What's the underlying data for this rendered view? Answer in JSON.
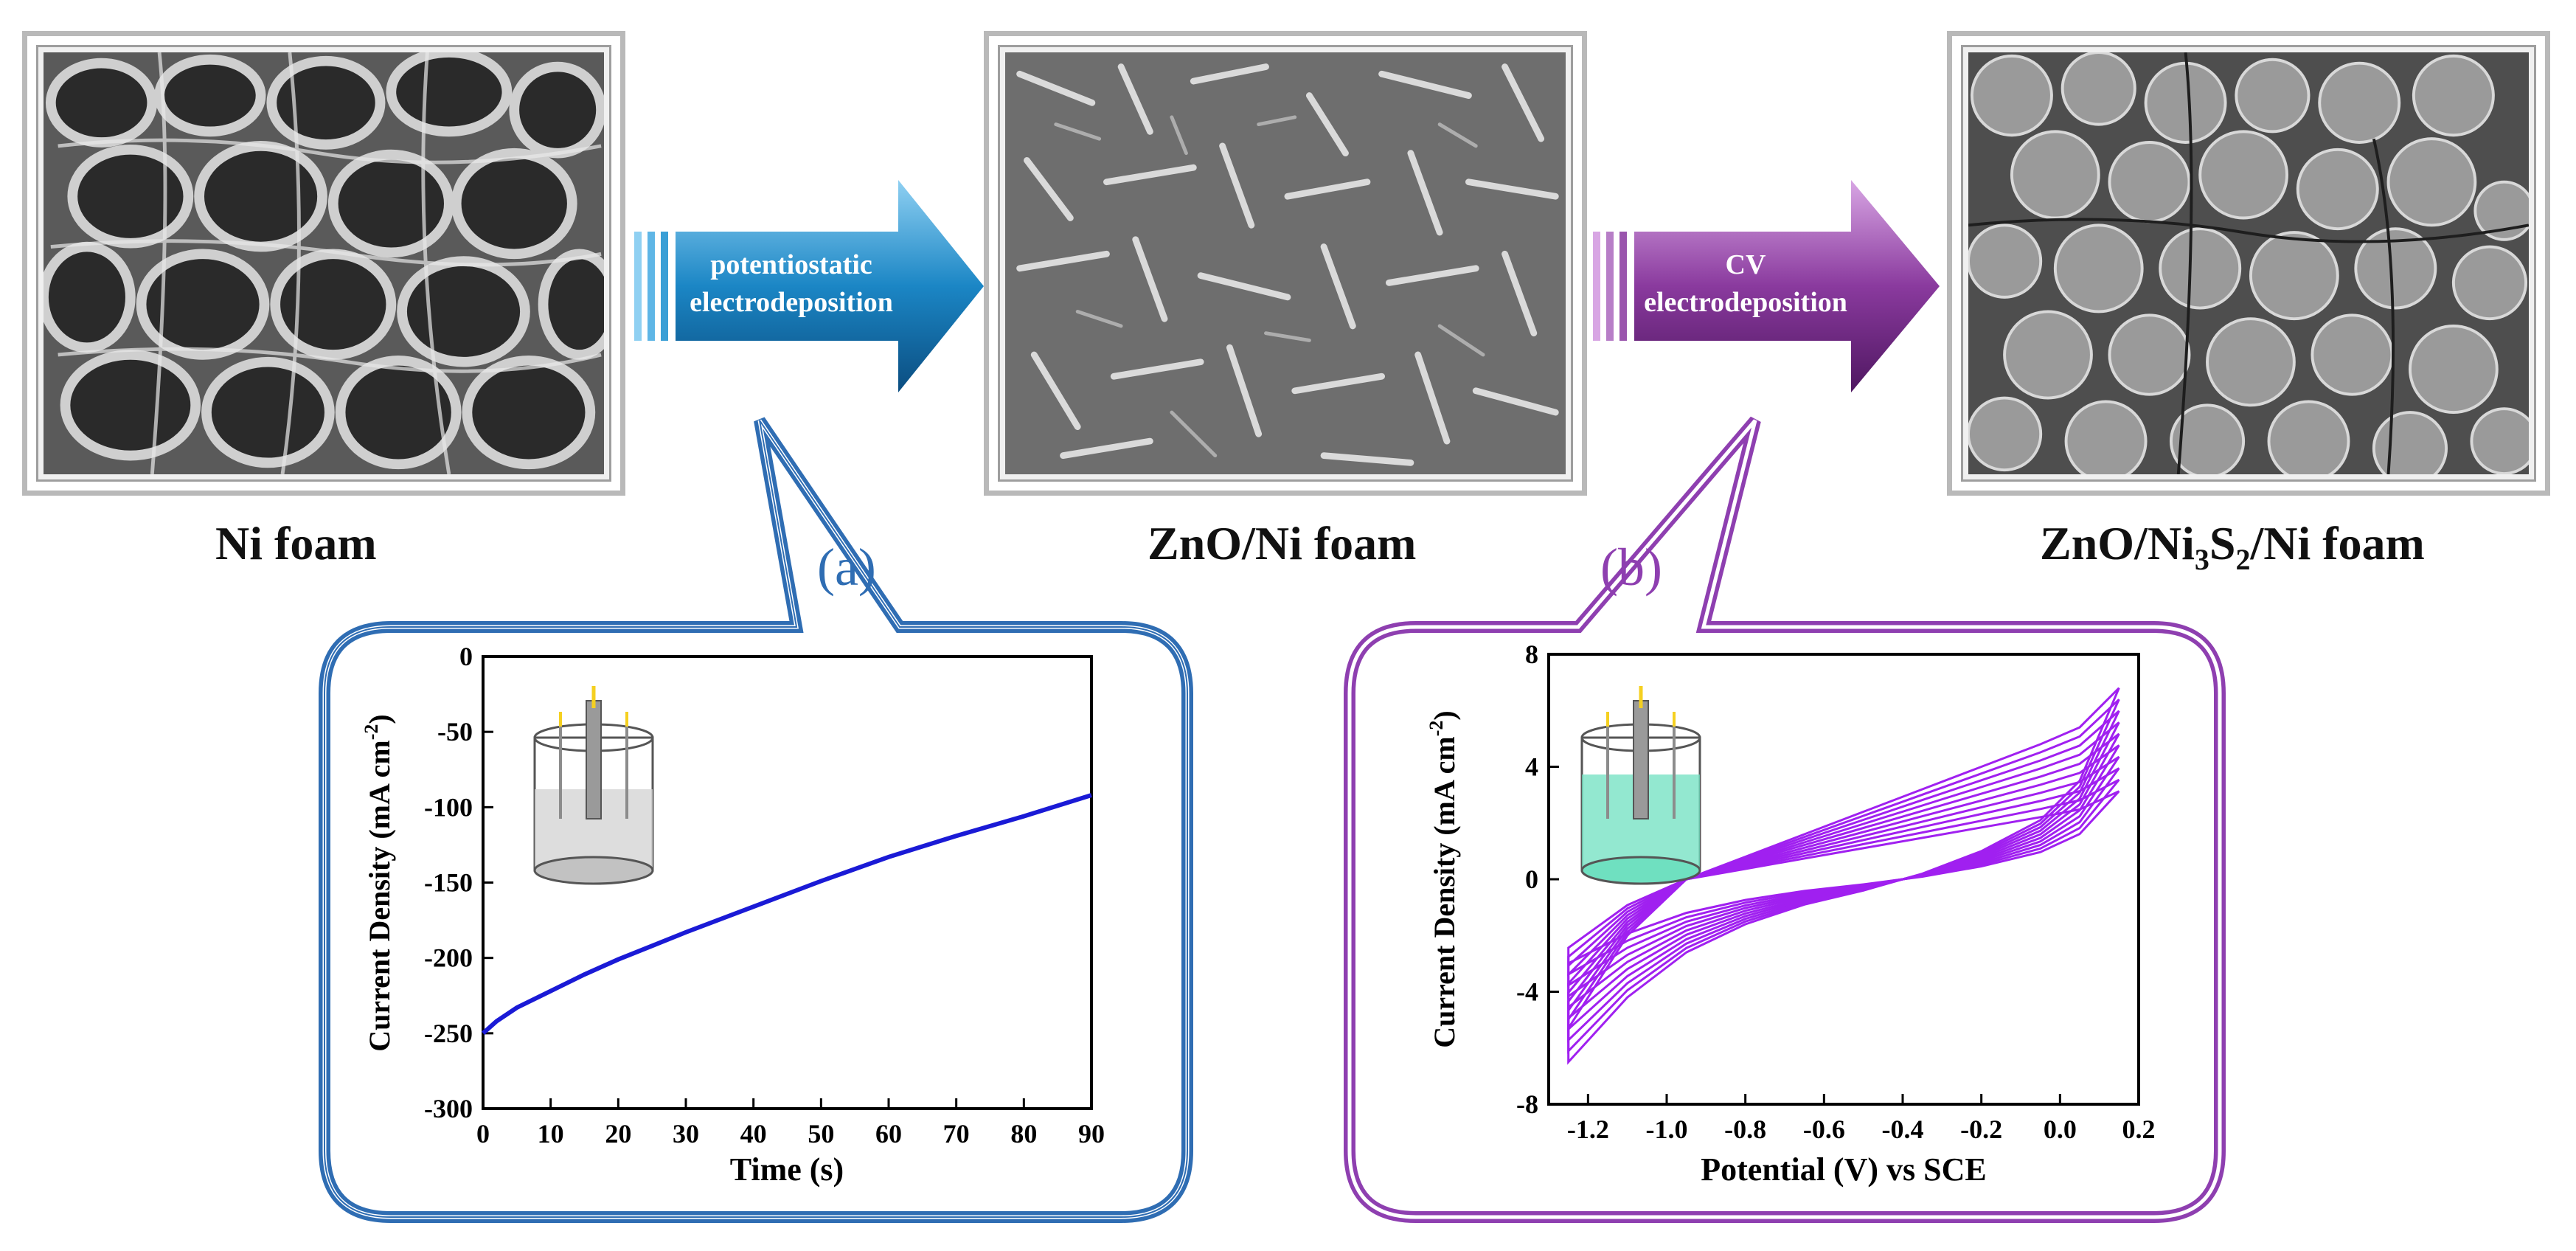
{
  "steps": [
    {
      "caption": "Ni foam"
    },
    {
      "caption": "ZnO/Ni foam"
    },
    {
      "caption_main": "ZnO/Ni",
      "caption_sub1": "3",
      "caption_mid": "S",
      "caption_sub2": "2",
      "caption_end": "/Ni foam"
    }
  ],
  "arrows": [
    {
      "line1": "potentiostatic",
      "line2": "electrodeposition",
      "color": "#1f78b4"
    },
    {
      "line1": "CV",
      "line2": "electrodeposition",
      "color": "#7b2d8e"
    }
  ],
  "panels": [
    {
      "letter": "(a)",
      "color": "#2f6db3"
    },
    {
      "letter": "(b)",
      "color": "#8e3fb0"
    }
  ],
  "chart_data": [
    {
      "type": "line",
      "xlabel": "Time (s)",
      "ylabel": "Current Density (mA cm",
      "ylabel_sup": "-2",
      "ylabel_end": ")",
      "xlim": [
        0,
        90
      ],
      "ylim": [
        -300,
        0
      ],
      "xticks": [
        0,
        10,
        20,
        30,
        40,
        50,
        60,
        70,
        80,
        90
      ],
      "yticks": [
        0,
        -50,
        -100,
        -150,
        -200,
        -250,
        -300
      ],
      "series_color": "#1a1ad6",
      "x": [
        0,
        2,
        5,
        10,
        15,
        20,
        25,
        30,
        40,
        50,
        60,
        70,
        80,
        90
      ],
      "y": [
        -250,
        -242,
        -233,
        -222,
        -211,
        -201,
        -192,
        -183,
        -166,
        -149,
        -133,
        -119,
        -106,
        -92
      ]
    },
    {
      "type": "line",
      "xlabel": "Potential (V) vs SCE",
      "ylabel": "Current Density (mA cm",
      "ylabel_sup": "-2",
      "ylabel_end": ")",
      "xlim": [
        -1.3,
        0.2
      ],
      "ylim": [
        -8,
        8
      ],
      "xticks": [
        -1.2,
        -1.0,
        -0.8,
        -0.6,
        -0.4,
        -0.2,
        0.0,
        0.2
      ],
      "xtick_labels": [
        "-1.2",
        "-1.0",
        "-0.8",
        "-0.6",
        "-0.4",
        "-0.2",
        "0.0",
        "0.2"
      ],
      "yticks": [
        8,
        4,
        0,
        -4,
        -8
      ],
      "series_color": "#a020f0",
      "cycles": 10,
      "x": [
        -1.25,
        -1.1,
        -0.95,
        -0.8,
        -0.65,
        -0.5,
        -0.35,
        -0.2,
        -0.05,
        0.05,
        0.15
      ],
      "y_first_forward": [
        -6.5,
        -4.2,
        -2.6,
        -1.6,
        -0.9,
        -0.4,
        0.2,
        1.0,
        2.1,
        3.5,
        6.8
      ],
      "y_first_reverse": [
        -5.3,
        -2.0,
        0.0,
        0.8,
        1.6,
        2.4,
        3.2,
        4.0,
        4.8,
        5.4,
        6.8
      ]
    }
  ]
}
